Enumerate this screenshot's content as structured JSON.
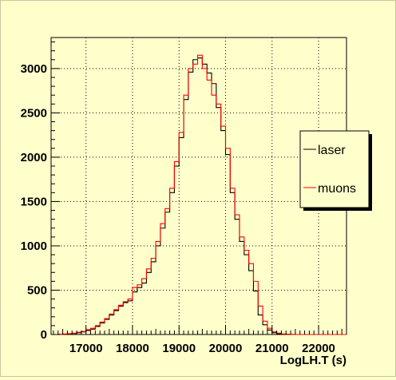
{
  "chart_data": {
    "type": "step",
    "xlabel": "LogLH.T (s)",
    "ylabel": "",
    "xlim": [
      16250,
      22600
    ],
    "ylim": [
      0,
      3350
    ],
    "bin_width": 100,
    "x_ticks": [
      17000,
      18000,
      19000,
      20000,
      21000,
      22000
    ],
    "y_ticks": [
      0,
      500,
      1000,
      1500,
      2000,
      2500,
      3000
    ],
    "grid": true,
    "legend_position": "right",
    "series": [
      {
        "name": "laser",
        "color": "#000000",
        "bin_starts": [
          16300,
          16400,
          16500,
          16600,
          16700,
          16800,
          16900,
          17000,
          17100,
          17200,
          17300,
          17400,
          17500,
          17600,
          17700,
          17800,
          17900,
          18000,
          18100,
          18200,
          18300,
          18400,
          18500,
          18600,
          18700,
          18800,
          18900,
          19000,
          19100,
          19200,
          19300,
          19400,
          19500,
          19600,
          19700,
          19800,
          19900,
          20000,
          20100,
          20200,
          20300,
          20400,
          20500,
          20600,
          20700,
          20800,
          20900,
          21000,
          21100,
          21200,
          21300,
          21400,
          21500,
          21600,
          21700,
          21800,
          21900,
          22000,
          22100,
          22200,
          22300,
          22400,
          22500
        ],
        "values": [
          0,
          2,
          5,
          8,
          12,
          20,
          30,
          45,
          60,
          90,
          130,
          170,
          220,
          270,
          320,
          360,
          380,
          480,
          530,
          580,
          700,
          820,
          1000,
          1200,
          1380,
          1600,
          1900,
          2220,
          2650,
          2960,
          3100,
          3120,
          3050,
          2950,
          2830,
          2560,
          2300,
          2030,
          1600,
          1300,
          1050,
          900,
          720,
          490,
          220,
          110,
          50,
          20,
          10,
          4,
          2,
          1,
          0,
          0,
          0,
          0,
          0,
          0,
          0,
          0,
          0,
          0,
          0
        ]
      },
      {
        "name": "muons",
        "color": "#ff0000",
        "bin_starts": [
          16300,
          16400,
          16500,
          16600,
          16700,
          16800,
          16900,
          17000,
          17100,
          17200,
          17300,
          17400,
          17500,
          17600,
          17700,
          17800,
          17900,
          18000,
          18100,
          18200,
          18300,
          18400,
          18500,
          18600,
          18700,
          18800,
          18900,
          19000,
          19100,
          19200,
          19300,
          19400,
          19500,
          19600,
          19700,
          19800,
          19900,
          20000,
          20100,
          20200,
          20300,
          20400,
          20500,
          20600,
          20700,
          20800,
          20900,
          21000,
          21100,
          21200,
          21300,
          21400,
          21500,
          21600,
          21700,
          21800,
          21900,
          22000,
          22100,
          22200,
          22300,
          22400,
          22500
        ],
        "values": [
          0,
          2,
          5,
          10,
          15,
          25,
          35,
          55,
          70,
          100,
          140,
          180,
          230,
          280,
          330,
          370,
          400,
          530,
          560,
          630,
          740,
          860,
          1050,
          1250,
          1420,
          1650,
          1950,
          2280,
          2700,
          3000,
          3050,
          3150,
          3000,
          2870,
          2700,
          2600,
          2350,
          2100,
          1650,
          1350,
          1100,
          950,
          800,
          600,
          320,
          150,
          70,
          30,
          15,
          6,
          3,
          1,
          0,
          0,
          0,
          0,
          0,
          0,
          0,
          0,
          0,
          0,
          0
        ]
      }
    ]
  }
}
